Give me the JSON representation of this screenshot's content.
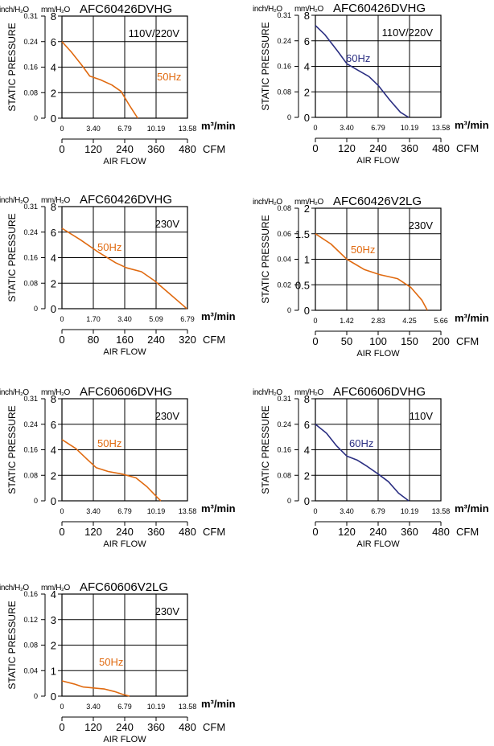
{
  "chart_data": [
    {
      "type": "line",
      "title": "AFC60426DVHG",
      "voltage": "110V/220V",
      "series": [
        {
          "name": "50Hz",
          "color": "#e06a10",
          "points": [
            [
              0,
              6.0
            ],
            [
              1.0,
              5.2
            ],
            [
              2.2,
              4.1
            ],
            [
              3.0,
              3.3
            ],
            [
              4.2,
              3.0
            ],
            [
              5.4,
              2.6
            ],
            [
              6.4,
              2.1
            ],
            [
              7.3,
              1.0
            ],
            [
              8.2,
              0
            ]
          ]
        }
      ],
      "xlim": [
        0,
        13.58
      ],
      "xticks": [
        "0",
        "3.40",
        "6.79",
        "10.19",
        "13.58"
      ],
      "x_unit": "m³/min",
      "ylim": [
        0,
        8
      ],
      "yticks_mm": [
        "0",
        "2",
        "4",
        "6",
        "8"
      ],
      "yticks_inch": [
        "0",
        "0.08",
        "0.16",
        "0.24",
        "0.31"
      ],
      "cfm_ticks": [
        "0",
        "120",
        "240",
        "360",
        "480"
      ],
      "cfm_label": "CFM",
      "xlabel": "AIR FLOW",
      "ylabel": "STATIC PRESSURE",
      "unit_inch": "inch/H₂O",
      "unit_mm": "mm/H₂O"
    },
    {
      "type": "line",
      "title": "AFC60426DVHG",
      "voltage": "110V/220V",
      "series": [
        {
          "name": "60Hz",
          "color": "#2b2f82",
          "points": [
            [
              0,
              7.2
            ],
            [
              1.0,
              6.5
            ],
            [
              2.5,
              5.1
            ],
            [
              3.4,
              4.2
            ],
            [
              4.6,
              3.7
            ],
            [
              5.8,
              3.2
            ],
            [
              6.8,
              2.5
            ],
            [
              8.0,
              1.4
            ],
            [
              9.2,
              0.4
            ],
            [
              10.1,
              0
            ]
          ]
        }
      ],
      "xlim": [
        0,
        13.58
      ],
      "xticks": [
        "0",
        "3.40",
        "6.79",
        "10.19",
        "13.58"
      ],
      "x_unit": "m³/min",
      "ylim": [
        0,
        8
      ],
      "yticks_mm": [
        "0",
        "2",
        "4",
        "6",
        "8"
      ],
      "yticks_inch": [
        "0",
        "0.08",
        "0.16",
        "0.24",
        "0.31"
      ],
      "cfm_ticks": [
        "0",
        "120",
        "240",
        "360",
        "480"
      ],
      "cfm_label": "CFM",
      "xlabel": "AIR FLOW",
      "ylabel": "STATIC PRESSURE",
      "unit_inch": "inch/H₂O",
      "unit_mm": "mm/H₂O"
    },
    {
      "type": "line",
      "title": "AFC60426DVHG",
      "voltage": "230V",
      "series": [
        {
          "name": "50Hz",
          "color": "#e06a10",
          "points": [
            [
              0,
              6.3
            ],
            [
              1.0,
              5.4
            ],
            [
              2.0,
              4.4
            ],
            [
              2.9,
              3.6
            ],
            [
              3.5,
              3.2
            ],
            [
              4.3,
              2.9
            ],
            [
              5.0,
              2.2
            ],
            [
              5.8,
              1.2
            ],
            [
              6.6,
              0.2
            ],
            [
              6.75,
              0
            ]
          ]
        }
      ],
      "xlim": [
        0,
        6.79
      ],
      "xticks": [
        "0",
        "1.70",
        "3.40",
        "5.09",
        "6.79"
      ],
      "x_unit": "m³/min",
      "ylim": [
        0,
        8
      ],
      "yticks_mm": [
        "0",
        "2",
        "4",
        "6",
        "8"
      ],
      "yticks_inch": [
        "0",
        "0.08",
        "0.16",
        "0.24",
        "0.31"
      ],
      "cfm_ticks": [
        "0",
        "80",
        "160",
        "240",
        "320"
      ],
      "cfm_label": "CFM",
      "xlabel": "AIR FLOW",
      "ylabel": "STATIC PRESSURE",
      "unit_inch": "inch/H₂O",
      "unit_mm": "mm/H₂O"
    },
    {
      "type": "line",
      "title": "AFC60426V2LG",
      "voltage": "230V",
      "series": [
        {
          "name": "50Hz",
          "color": "#e06a10",
          "points": [
            [
              0,
              1.5
            ],
            [
              0.7,
              1.3
            ],
            [
              1.42,
              1.0
            ],
            [
              2.2,
              0.8
            ],
            [
              2.9,
              0.7
            ],
            [
              3.7,
              0.62
            ],
            [
              4.3,
              0.45
            ],
            [
              4.8,
              0.2
            ],
            [
              5.05,
              0
            ]
          ]
        }
      ],
      "xlim": [
        0,
        5.66
      ],
      "xticks": [
        "0",
        "1.42",
        "2.83",
        "4.25",
        "5.66"
      ],
      "x_unit": "m³/min",
      "ylim": [
        0,
        2
      ],
      "yticks_mm": [
        "0",
        "0.5",
        "1",
        "1.5",
        "2"
      ],
      "yticks_inch": [
        "0",
        "0.02",
        "0.04",
        "0.06",
        "0.08"
      ],
      "cfm_ticks": [
        "0",
        "50",
        "100",
        "150",
        "200"
      ],
      "cfm_label": "CFM",
      "xlabel": "AIR FLOW",
      "ylabel": "STATIC PRESSURE",
      "unit_inch": "inch/H₂O",
      "unit_mm": "mm/H₂O"
    },
    {
      "type": "line",
      "title": "AFC60606DVHG",
      "voltage": "230V",
      "series": [
        {
          "name": "50Hz",
          "color": "#e06a10",
          "points": [
            [
              0,
              4.8
            ],
            [
              1.5,
              4.1
            ],
            [
              2.8,
              3.2
            ],
            [
              3.7,
              2.6
            ],
            [
              5.0,
              2.3
            ],
            [
              6.5,
              2.1
            ],
            [
              8.0,
              1.8
            ],
            [
              9.2,
              1.1
            ],
            [
              10.4,
              0.2
            ],
            [
              10.7,
              0
            ]
          ]
        }
      ],
      "xlim": [
        0,
        13.58
      ],
      "xticks": [
        "0",
        "3.40",
        "6.79",
        "10.19",
        "13.58"
      ],
      "x_unit": "m³/min",
      "ylim": [
        0,
        8
      ],
      "yticks_mm": [
        "0",
        "2",
        "4",
        "6",
        "8"
      ],
      "yticks_inch": [
        "0",
        "0.08",
        "0.16",
        "0.24",
        "0.31"
      ],
      "cfm_ticks": [
        "0",
        "120",
        "240",
        "360",
        "480"
      ],
      "cfm_label": "CFM",
      "xlabel": "AIR FLOW",
      "ylabel": "STATIC PRESSURE",
      "unit_inch": "inch/H₂O",
      "unit_mm": "mm/H₂O"
    },
    {
      "type": "line",
      "title": "AFC60606DVHG",
      "voltage": "110V",
      "series": [
        {
          "name": "60Hz",
          "color": "#2b2f82",
          "points": [
            [
              0,
              6.0
            ],
            [
              1.2,
              5.3
            ],
            [
              2.3,
              4.3
            ],
            [
              3.4,
              3.5
            ],
            [
              4.5,
              3.2
            ],
            [
              5.6,
              2.7
            ],
            [
              6.8,
              2.1
            ],
            [
              7.9,
              1.5
            ],
            [
              9.0,
              0.6
            ],
            [
              10.1,
              0
            ]
          ]
        }
      ],
      "xlim": [
        0,
        13.58
      ],
      "xticks": [
        "0",
        "3.40",
        "6.79",
        "10.19",
        "13.58"
      ],
      "x_unit": "m³/min",
      "ylim": [
        0,
        8
      ],
      "yticks_mm": [
        "0",
        "2",
        "4",
        "6",
        "8"
      ],
      "yticks_inch": [
        "0",
        "0.08",
        "0.16",
        "0.24",
        "0.31"
      ],
      "cfm_ticks": [
        "0",
        "120",
        "240",
        "360",
        "480"
      ],
      "cfm_label": "CFM",
      "xlabel": "AIR FLOW",
      "ylabel": "STATIC PRESSURE",
      "unit_inch": "inch/H₂O",
      "unit_mm": "mm/H₂O"
    },
    {
      "type": "line",
      "title": "AFC60606V2LG",
      "voltage": "230V",
      "series": [
        {
          "name": "50Hz",
          "color": "#e06a10",
          "points": [
            [
              0,
              0.6
            ],
            [
              1.3,
              0.48
            ],
            [
              2.3,
              0.36
            ],
            [
              3.4,
              0.32
            ],
            [
              4.6,
              0.28
            ],
            [
              5.7,
              0.18
            ],
            [
              6.5,
              0.08
            ],
            [
              7.3,
              0
            ]
          ]
        }
      ],
      "xlim": [
        0,
        13.58
      ],
      "xticks": [
        "0",
        "3.40",
        "6.79",
        "10.19",
        "13.58"
      ],
      "x_unit": "m³/min",
      "ylim": [
        0,
        4
      ],
      "yticks_mm": [
        "0",
        "1",
        "2",
        "3",
        "4"
      ],
      "yticks_inch": [
        "0",
        "0.04",
        "0.08",
        "0.12",
        "0.16"
      ],
      "cfm_ticks": [
        "0",
        "120",
        "240",
        "360",
        "480"
      ],
      "cfm_label": "CFM",
      "xlabel": "AIR FLOW",
      "ylabel": "STATIC PRESSURE",
      "unit_inch": "inch/H₂O",
      "unit_mm": "mm/H₂O"
    }
  ]
}
